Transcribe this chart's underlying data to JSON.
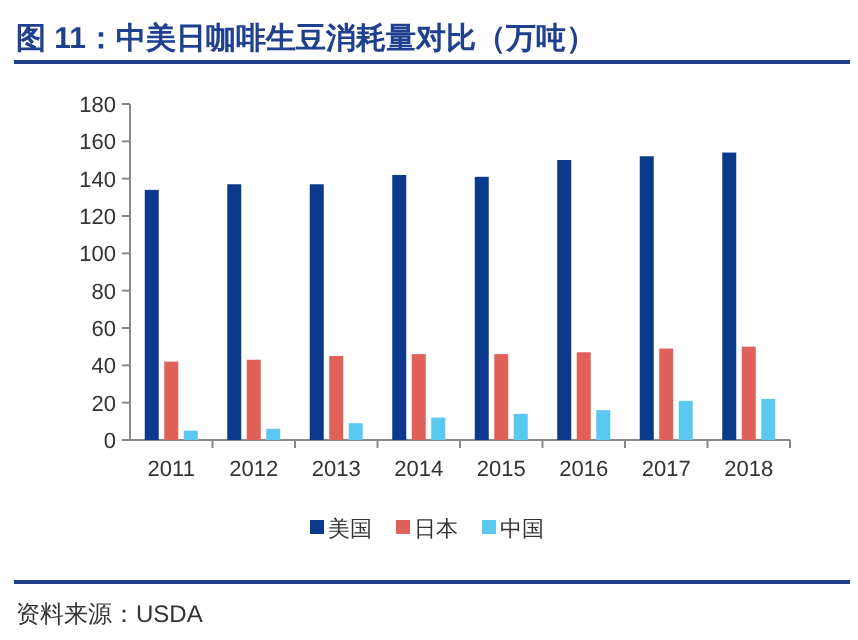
{
  "chart_data": {
    "type": "bar",
    "title": "图 11：中美日咖啡生豆消耗量对比（万吨）",
    "annotations": [
      "资料来源：USDA"
    ],
    "categories": [
      "2011",
      "2012",
      "2013",
      "2014",
      "2015",
      "2016",
      "2017",
      "2018"
    ],
    "series": [
      {
        "name": "美国",
        "color": "#0b3a8c",
        "values": [
          134,
          137,
          137,
          142,
          141,
          150,
          152,
          154
        ]
      },
      {
        "name": "日本",
        "color": "#e0605a",
        "values": [
          42,
          43,
          45,
          46,
          46,
          47,
          49,
          50
        ]
      },
      {
        "name": "中国",
        "color": "#5bc8f0",
        "values": [
          5,
          6,
          9,
          12,
          14,
          16,
          21,
          22
        ]
      }
    ],
    "ylim": [
      0,
      180
    ],
    "yticks": [
      0,
      20,
      40,
      60,
      80,
      100,
      120,
      140,
      160,
      180
    ],
    "grid": false,
    "legend": "bottom"
  }
}
